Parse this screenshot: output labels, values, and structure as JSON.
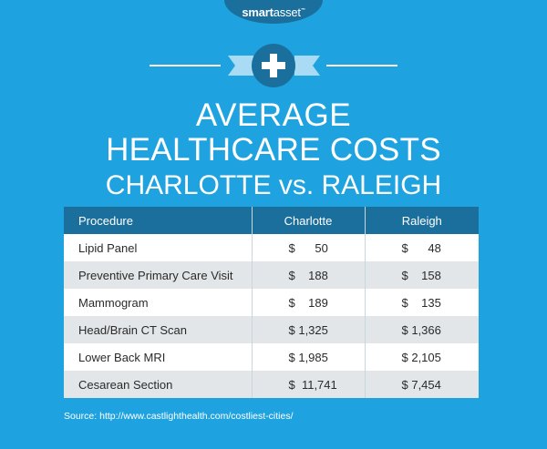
{
  "logo": {
    "bold": "smart",
    "light": "asset",
    "mark": "™"
  },
  "title": {
    "line1": "AVERAGE",
    "line2": "HEALTHCARE COSTS",
    "line3": "CHARLOTTE vs. RALEIGH"
  },
  "table": {
    "headers": [
      "Procedure",
      "Charlotte",
      "Raleigh"
    ],
    "rows": [
      [
        "Lipid Panel",
        "$      50",
        "$      48"
      ],
      [
        "Preventive Primary Care Visit",
        "$    188",
        "$    158"
      ],
      [
        "Mammogram",
        "$    189",
        "$    135"
      ],
      [
        "Head/Brain CT Scan",
        "$ 1,325",
        "$ 1,366"
      ],
      [
        "Lower Back MRI",
        "$ 1,985",
        "$ 2,105"
      ],
      [
        "Cesarean Section",
        "$  11,741",
        "$ 7,454"
      ]
    ]
  },
  "source": "Source: http://www.castlighthealth.com/costliest-cities/",
  "colors": {
    "background": "#1fa3e0",
    "dark_blue": "#1a6f9c",
    "ribbon": "#a9dcf4",
    "row_alt": "#e3e6e8"
  },
  "icons": [
    "medical-cross-icon"
  ]
}
